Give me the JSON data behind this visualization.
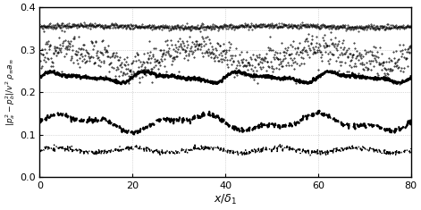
{
  "xlim": [
    0,
    80
  ],
  "ylim": [
    0,
    0.4
  ],
  "xticks": [
    0,
    20,
    40,
    60,
    80
  ],
  "yticks": [
    0,
    0.1,
    0.2,
    0.3,
    0.4
  ],
  "line1_mean": 0.355,
  "line1_noise": 0.003,
  "line2_mean": 0.293,
  "line2_noise": 0.018,
  "line3_mean": 0.235,
  "line3_noise": 0.01,
  "line4_mean": 0.128,
  "line4_noise": 0.018,
  "line5_mean": 0.063,
  "line5_noise": 0.008,
  "n_points": 800
}
